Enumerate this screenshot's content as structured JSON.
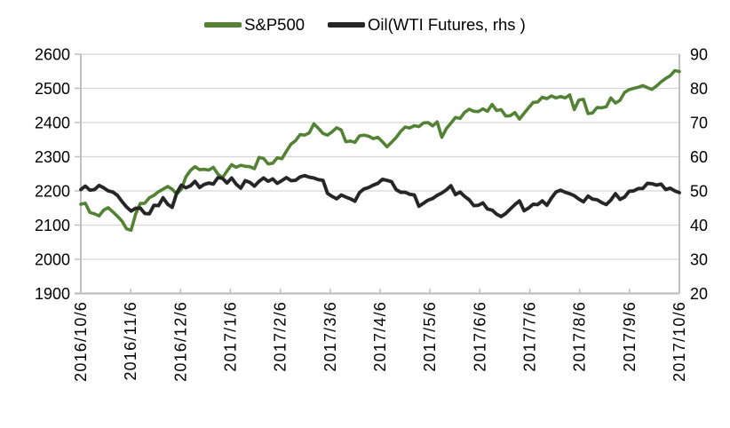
{
  "chart_data": {
    "type": "line",
    "title": "",
    "legend_position": "top",
    "grid": true,
    "legend": [
      {
        "name": "S&P500",
        "color": "#548235"
      },
      {
        "name": "Oil(WTI Futures, rhs )",
        "color": "#262626"
      }
    ],
    "x_tick_labels": [
      "2016/10/6",
      "2016/11/6",
      "2016/12/6",
      "2017/1/6",
      "2017/2/6",
      "2017/3/6",
      "2017/4/6",
      "2017/5/6",
      "2017/6/6",
      "2017/7/6",
      "2017/8/6",
      "2017/9/6",
      "2017/10/6"
    ],
    "left_axis": {
      "label": "",
      "min": 1900,
      "max": 2600,
      "step": 100,
      "tick_labels": [
        "2600",
        "2500",
        "2400",
        "2300",
        "2200",
        "2100",
        "2000",
        "1900"
      ]
    },
    "right_axis": {
      "label": "",
      "min": 20,
      "max": 90,
      "step": 10,
      "tick_labels": [
        "90",
        "80",
        "70",
        "60",
        "50",
        "40",
        "30",
        "20"
      ]
    },
    "series": [
      {
        "name": "S&P500",
        "axis": "left",
        "color": "#548235",
        "stroke_width": 3.6,
        "values": [
          2161,
          2164,
          2137,
          2133,
          2127,
          2144,
          2151,
          2139,
          2126,
          2112,
          2089,
          2085,
          2132,
          2163,
          2164,
          2180,
          2187,
          2198,
          2205,
          2213,
          2205,
          2191,
          2205,
          2241,
          2260,
          2271,
          2262,
          2263,
          2261,
          2269,
          2249,
          2239,
          2258,
          2277,
          2269,
          2275,
          2272,
          2271,
          2265,
          2298,
          2295,
          2279,
          2281,
          2297,
          2294,
          2316,
          2337,
          2347,
          2365,
          2363,
          2370,
          2396,
          2383,
          2368,
          2363,
          2373,
          2385,
          2378,
          2344,
          2346,
          2342,
          2361,
          2363,
          2360,
          2353,
          2357,
          2344,
          2329,
          2342,
          2356,
          2374,
          2387,
          2384,
          2391,
          2388,
          2399,
          2400,
          2390,
          2402,
          2357,
          2382,
          2398,
          2415,
          2412,
          2430,
          2439,
          2433,
          2432,
          2440,
          2433,
          2453,
          2435,
          2438,
          2419,
          2420,
          2429,
          2410,
          2427,
          2443,
          2459,
          2460,
          2474,
          2470,
          2478,
          2472,
          2476,
          2472,
          2481,
          2438,
          2466,
          2468,
          2426,
          2428,
          2444,
          2443,
          2446,
          2472,
          2457,
          2465,
          2488,
          2496,
          2500,
          2503,
          2508,
          2502,
          2497,
          2507,
          2519,
          2529,
          2537,
          2552,
          2549
        ]
      },
      {
        "name": "Oil(WTI Futures, rhs )",
        "axis": "right",
        "color": "#262626",
        "stroke_width": 3.9,
        "values": [
          50.4,
          51.4,
          50.2,
          50.4,
          51.6,
          50.9,
          50.0,
          49.7,
          48.7,
          46.9,
          45.3,
          44.1,
          44.9,
          45.0,
          43.4,
          43.3,
          45.8,
          45.7,
          48.0,
          46.1,
          45.2,
          49.4,
          51.7,
          50.9,
          51.5,
          52.8,
          51.0,
          51.9,
          52.3,
          52.0,
          53.9,
          53.7,
          52.3,
          53.8,
          52.0,
          50.8,
          53.0,
          52.5,
          51.4,
          52.8,
          53.8,
          52.8,
          53.5,
          52.2,
          53.0,
          53.9,
          53.0,
          53.1,
          54.1,
          54.5,
          54.0,
          53.8,
          53.3,
          53.1,
          49.3,
          48.4,
          47.7,
          48.8,
          48.2,
          47.7,
          47.0,
          49.5,
          50.6,
          51.0,
          51.7,
          52.2,
          53.4,
          53.1,
          52.7,
          50.4,
          49.6,
          49.6,
          49.0,
          48.8,
          45.5,
          46.4,
          47.3,
          47.8,
          48.7,
          49.4,
          50.3,
          51.5,
          48.9,
          49.7,
          48.4,
          47.4,
          45.7,
          45.8,
          46.5,
          44.7,
          44.4,
          43.2,
          42.5,
          43.4,
          44.7,
          46.0,
          47.1,
          44.2,
          45.0,
          46.1,
          46.0,
          47.1,
          45.8,
          47.9,
          49.7,
          50.2,
          49.6,
          49.2,
          48.6,
          47.6,
          46.8,
          48.5,
          47.6,
          47.4,
          46.6,
          46.0,
          47.3,
          49.2,
          47.5,
          48.2,
          49.9,
          50.0,
          50.7,
          50.7,
          52.2,
          52.1,
          51.7,
          52.0,
          50.4,
          50.8,
          50.0,
          49.5
        ]
      }
    ]
  },
  "styles": {
    "background": "#ffffff",
    "grid_color": "#d6d6d6",
    "axis_color": "#bfbfbf",
    "text_color": "#000000"
  }
}
